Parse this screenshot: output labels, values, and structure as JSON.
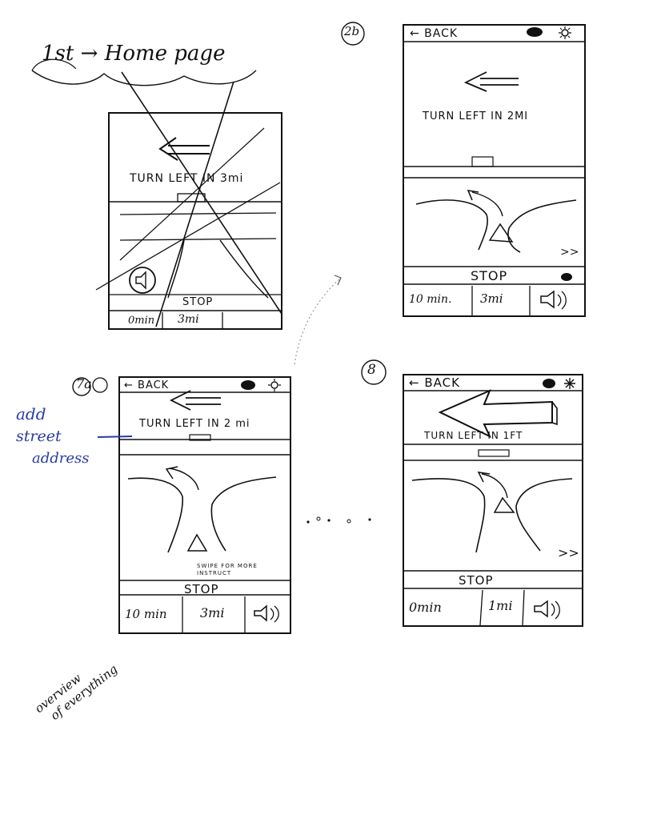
{
  "page_title": "1st → Home page",
  "side_note": [
    "add",
    "street",
    "address"
  ],
  "overview_note": [
    "overview",
    "of everything"
  ],
  "sketches": [
    {
      "tag": "",
      "crossed": true,
      "instruction": "TURN LEFT IN 3mi",
      "stop": "STOP",
      "time": "0min",
      "distance": "3mi"
    },
    {
      "tag": "2b",
      "back": "← BACK",
      "instruction": "TURN LEFT IN 2MI",
      "stop": "STOP",
      "time": "10 min.",
      "distance": "3mi",
      "more": ">>"
    },
    {
      "tag": "7a",
      "back": "← BACK",
      "instruction": "TURN LEFT IN 2 mi",
      "swipe_hint": "SWIPE FOR MORE INSTRUCT",
      "stop": "STOP",
      "time": "10 min",
      "distance": "3mi"
    },
    {
      "tag": "8",
      "back": "← BACK",
      "instruction": "TURN LEFT IN 1FT",
      "stop": "STOP",
      "time": "0min",
      "distance": "1mi",
      "more": ">>"
    }
  ],
  "icons": [
    "back-arrow-icon",
    "eye-icon",
    "sun-icon",
    "speaker-icon",
    "turn-arrow-icon",
    "intersection-map"
  ]
}
